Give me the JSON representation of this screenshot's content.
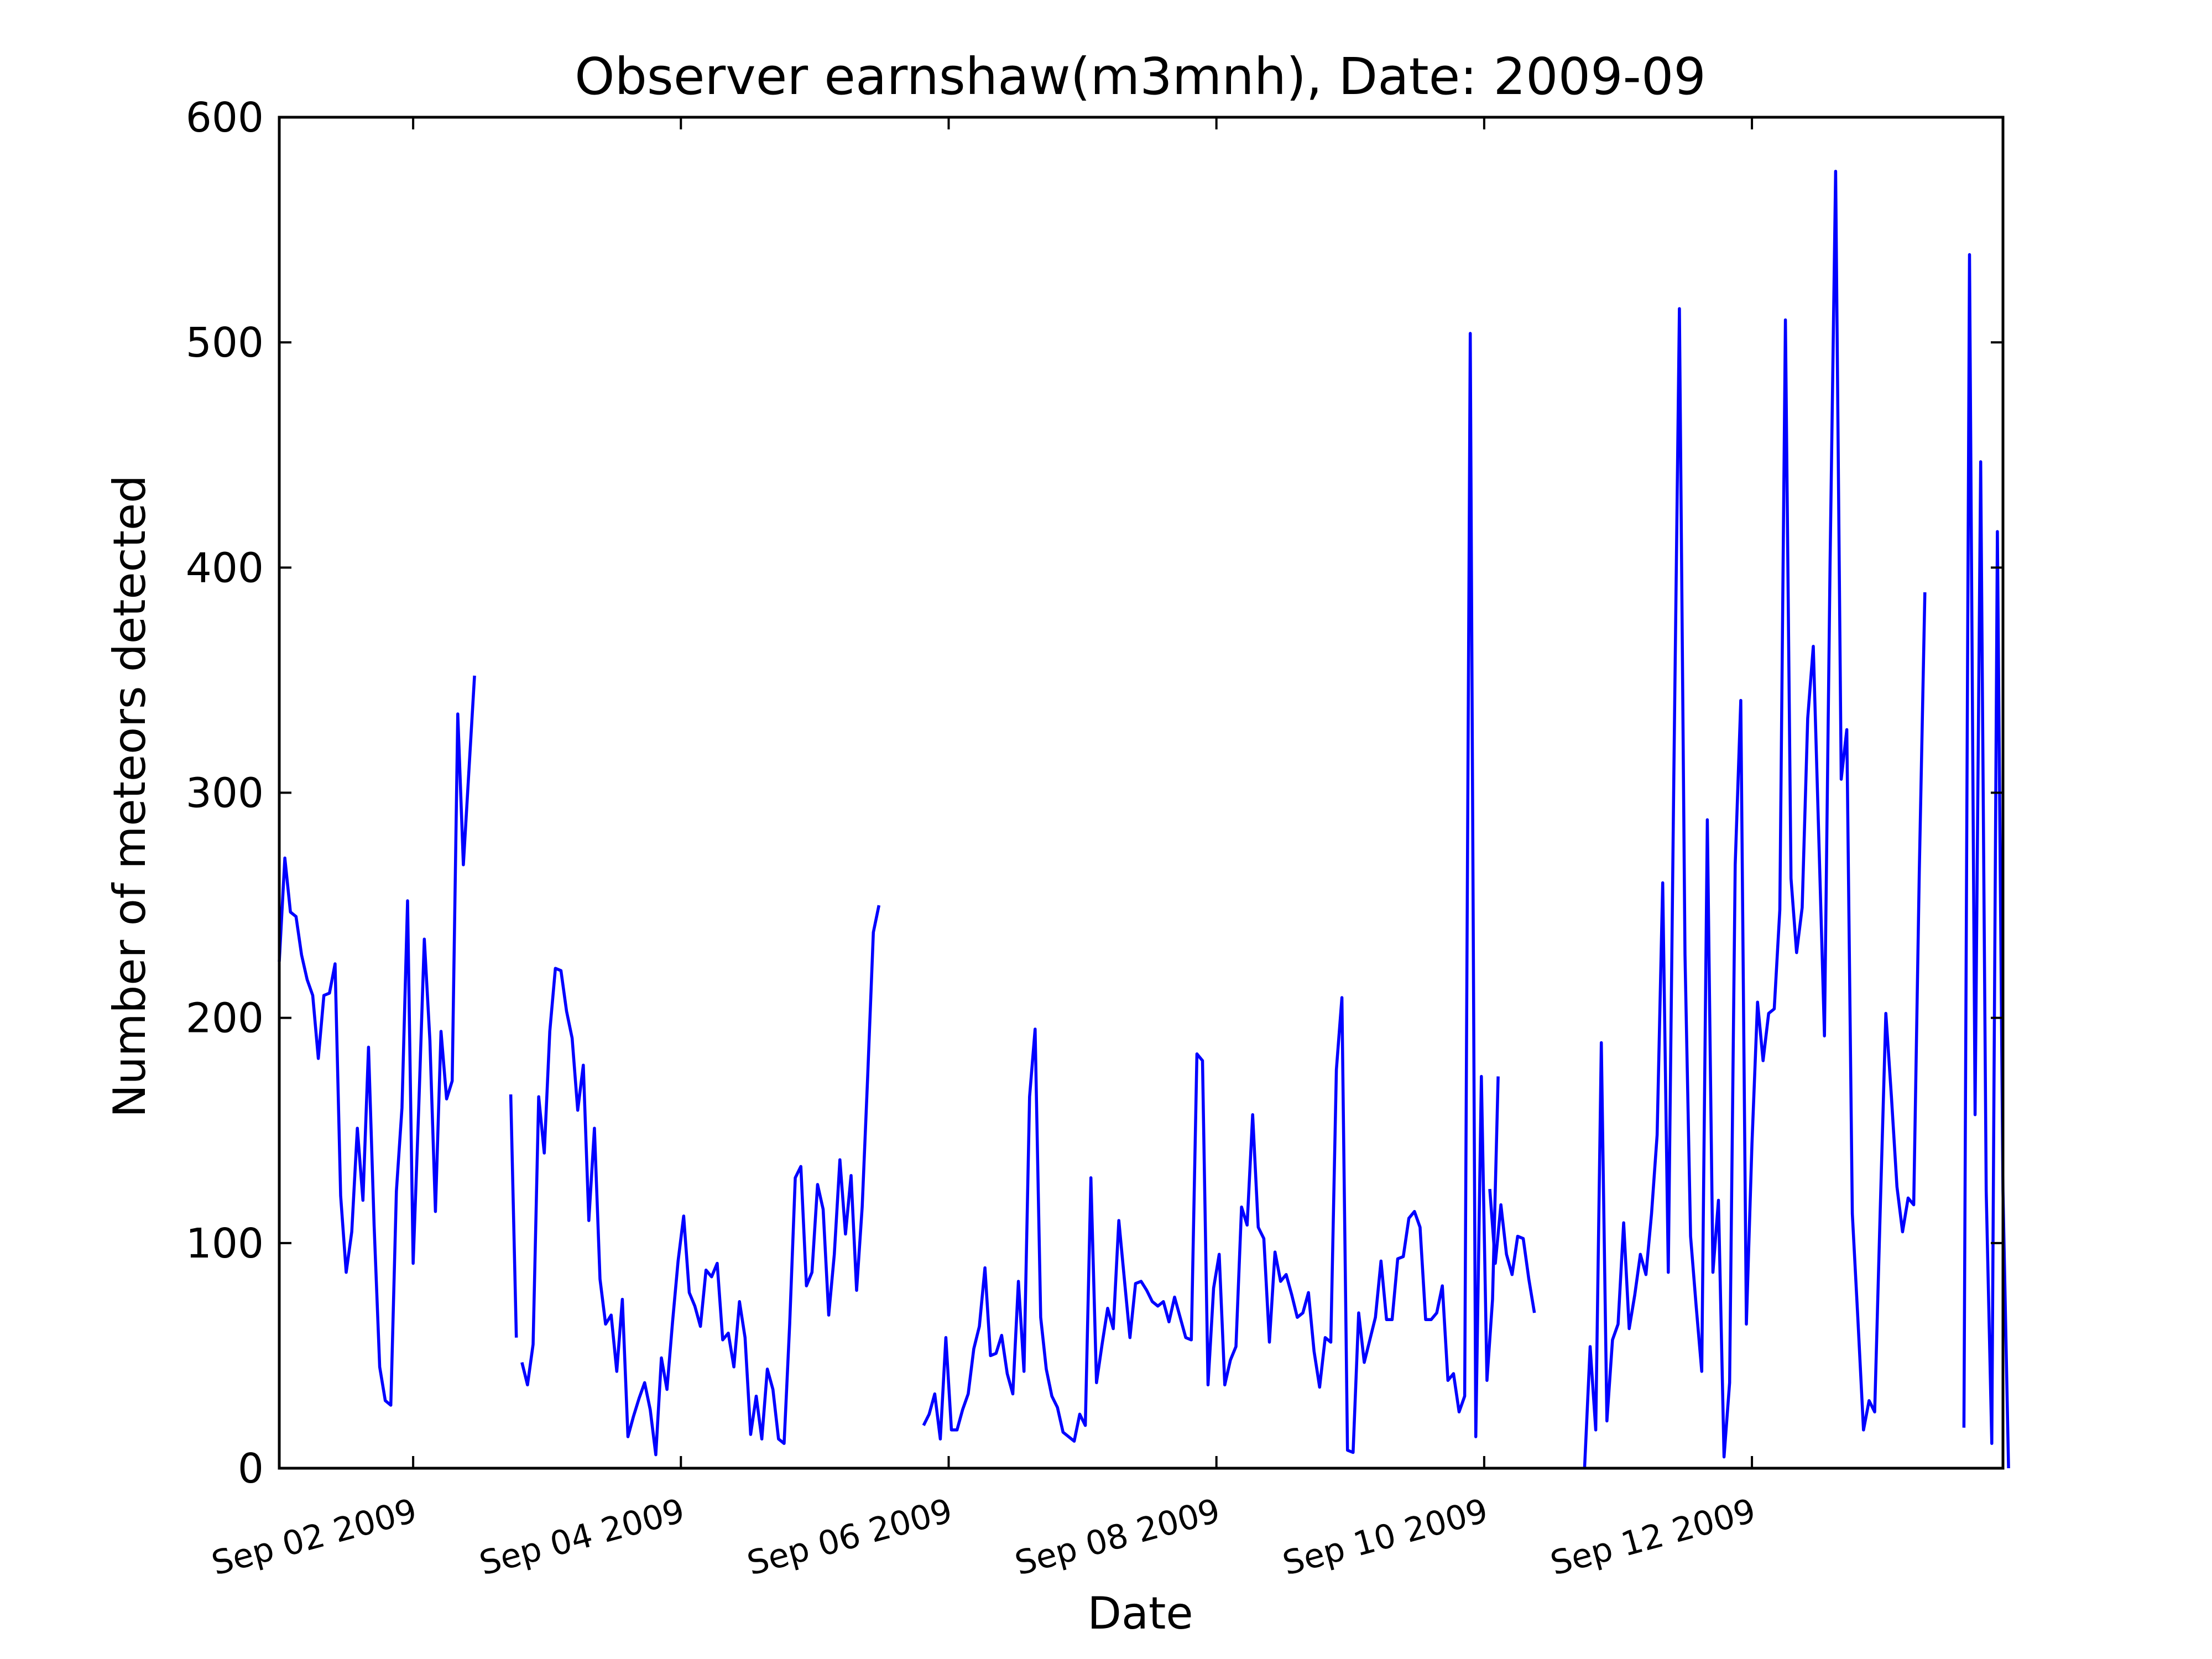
{
  "chart_data": {
    "type": "line",
    "title": "Observer earnshaw(m3mnh), Date: 2009-09",
    "xlabel": "Date",
    "ylabel": "Number of meteors detected",
    "ylim": [
      0,
      600
    ],
    "xlim": [
      "2009-09-01 00:00",
      "2009-09-13 21:00"
    ],
    "y_ticks": [
      "0",
      "100",
      "200",
      "300",
      "400",
      "500",
      "600"
    ],
    "x_ticks": [
      {
        "date": "2009-09-02",
        "label": "Sep 02 2009"
      },
      {
        "date": "2009-09-04",
        "label": "Sep 04 2009"
      },
      {
        "date": "2009-09-06",
        "label": "Sep 06 2009"
      },
      {
        "date": "2009-09-08",
        "label": "Sep 08 2009"
      },
      {
        "date": "2009-09-10",
        "label": "Sep 10 2009"
      },
      {
        "date": "2009-09-12",
        "label": "Sep 12 2009"
      }
    ],
    "grid": false,
    "color": "#0000ff",
    "series": [
      {
        "segments": [
          {
            "start": "2009-09-01 00:00",
            "step_hours": 1,
            "values": [
              225,
              271,
              247,
              245,
              228,
              217,
              210,
              182,
              210,
              211,
              224,
              121,
              87,
              105,
              151,
              119,
              187,
              108,
              45,
              30,
              28,
              123,
              160,
              252,
              91,
              160,
              235,
              190,
              114,
              194,
              164,
              172,
              335,
              268,
              310,
              352
            ]
          },
          {
            "start": "2009-09-02 17:30",
            "step_hours": 1,
            "values": [
              166,
              58
            ]
          },
          {
            "start": "2009-09-02 19:30",
            "step_hours": 1,
            "values": [
              47,
              37,
              55,
              165,
              140,
              194,
              222,
              221,
              203,
              191,
              159,
              179,
              110,
              151,
              84,
              64,
              68,
              43,
              75,
              14,
              23,
              31,
              38,
              26,
              6,
              49,
              35,
              65,
              92,
              112,
              78,
              72,
              63,
              88,
              85,
              91,
              57,
              60,
              45,
              74,
              58,
              15,
              32,
              13,
              44,
              35,
              13,
              11,
              64,
              129,
              134,
              81,
              87,
              126,
              115,
              68,
              95,
              137,
              104,
              130,
              79,
              116,
              175,
              238,
              250
            ]
          },
          {
            "start": "2009-09-05 19:30",
            "step_hours": 1,
            "values": [
              19,
              24,
              33,
              13,
              58,
              17,
              17,
              26,
              33,
              53,
              63,
              89,
              50,
              51,
              59,
              42,
              33,
              83,
              43,
              165,
              195,
              67,
              44,
              32,
              27,
              16,
              14,
              12,
              24,
              19,
              129,
              38,
              55,
              71,
              62,
              110,
              84,
              58,
              82,
              83,
              79,
              74,
              72,
              74,
              65,
              76,
              67,
              58,
              57,
              184,
              181,
              37,
              80,
              95,
              37,
              48,
              54,
              116,
              108,
              157,
              107,
              102,
              56,
              96,
              83,
              86,
              77,
              67,
              69,
              78,
              52,
              36,
              58,
              56,
              177,
              209,
              8,
              7,
              69,
              47,
              57,
              67,
              92,
              66,
              66,
              93,
              94,
              111,
              114,
              107,
              66,
              66,
              69,
              81,
              39,
              42,
              25,
              32,
              504,
              14,
              174,
              39,
              75,
              174
            ]
          },
          {
            "start": "2009-09-10 01:00",
            "step_hours": 1,
            "values": [
              124,
              91,
              117,
              95,
              86,
              103,
              102,
              84,
              69
            ]
          },
          {
            "start": "2009-09-10 18:00",
            "step_hours": 1,
            "values": [
              0,
              54,
              17,
              189,
              21,
              57,
              64,
              109,
              62,
              77,
              95,
              86,
              113,
              148,
              260,
              87,
              307,
              515,
              228,
              103,
              72,
              43,
              288,
              87,
              119,
              5,
              38,
              268,
              341,
              64,
              144,
              207,
              181,
              202,
              204,
              248,
              510,
              262,
              229,
              249,
              333,
              365,
              279,
              192,
              401,
              576,
              306,
              328,
              113,
              66,
              17,
              30,
              25,
              115,
              202,
              165,
              125,
              105,
              120,
              117,
              265,
              389
            ]
          },
          {
            "start": "2009-09-13 14:00",
            "step_hours": 1,
            "values": [
              18,
              539,
              157,
              447,
              123,
              11,
              416,
              123,
              0
            ]
          }
        ]
      }
    ]
  }
}
